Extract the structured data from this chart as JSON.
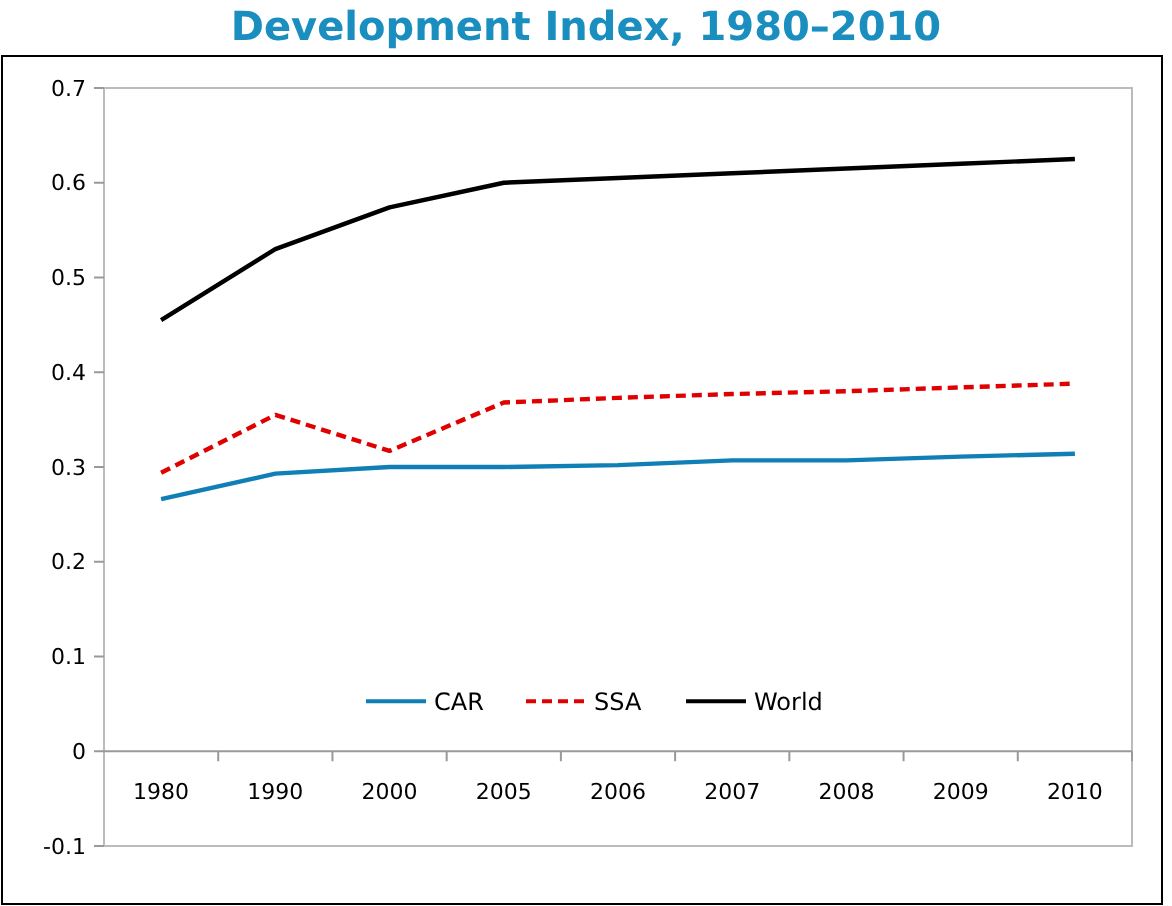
{
  "chart_data": {
    "type": "line",
    "title": "Development Index, 1980–2010",
    "categories": [
      "1980",
      "1990",
      "2000",
      "2005",
      "2006",
      "2007",
      "2008",
      "2009",
      "2010"
    ],
    "series": [
      {
        "name": "CAR",
        "color": "#0f7fb5",
        "line_style": "solid",
        "values": [
          0.266,
          0.293,
          0.3,
          0.3,
          0.302,
          0.307,
          0.307,
          0.311,
          0.314
        ]
      },
      {
        "name": "SSA",
        "color": "#e00000",
        "line_style": "dashed",
        "values": [
          0.294,
          0.355,
          0.317,
          0.368,
          0.373,
          0.377,
          0.38,
          0.384,
          0.388
        ]
      },
      {
        "name": "World",
        "color": "#000000",
        "line_style": "solid",
        "values": [
          0.455,
          0.53,
          0.574,
          0.6,
          0.605,
          0.61,
          0.615,
          0.62,
          0.625
        ]
      }
    ],
    "ylim": [
      -0.1,
      0.7
    ],
    "yticks": [
      -0.1,
      0,
      0.1,
      0.2,
      0.3,
      0.4,
      0.5,
      0.6,
      0.7
    ],
    "grid": false,
    "legend": "bottom",
    "marker": "none"
  }
}
